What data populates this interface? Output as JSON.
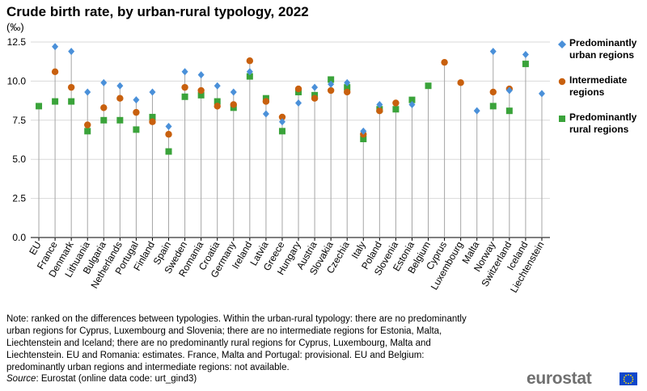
{
  "chart_data": {
    "type": "scatter",
    "title": "Crude birth rate, by urban-rural typology, 2022",
    "ylabel": "(‰)",
    "ylim": [
      0,
      12.5
    ],
    "yticks": [
      "0.0",
      "2.5",
      "5.0",
      "7.5",
      "10.0",
      "12.5"
    ],
    "grid": true,
    "legend_position": "right",
    "categories": [
      "EU",
      "France",
      "Denmark",
      "Lithuania",
      "Bulgaria",
      "Netherlands",
      "Portugal",
      "Finland",
      "Spain",
      "Sweden",
      "Romania",
      "Croatia",
      "Germany",
      "Ireland",
      "Latvia",
      "Greece",
      "Hungary",
      "Austria",
      "Slovakia",
      "Czechia",
      "Italy",
      "Poland",
      "Slovenia",
      "Estonia",
      "Belgium",
      "Cyprus",
      "Luxembourg",
      "Malta",
      "Norway",
      "Switzerland",
      "Iceland",
      "Liechtenstein"
    ],
    "series": [
      {
        "name": "Predominantly urban regions",
        "color": "#4a90d9",
        "marker": "diamond",
        "values": [
          null,
          12.2,
          11.9,
          9.3,
          9.9,
          9.7,
          8.8,
          9.3,
          7.1,
          10.6,
          10.4,
          9.7,
          9.3,
          10.6,
          7.9,
          7.4,
          8.6,
          9.6,
          9.8,
          9.9,
          6.8,
          8.5,
          null,
          8.5,
          null,
          null,
          null,
          8.1,
          11.9,
          9.4,
          11.7,
          9.2
        ]
      },
      {
        "name": "Intermediate regions",
        "color": "#c8600e",
        "marker": "circle",
        "values": [
          null,
          10.6,
          9.6,
          7.2,
          8.3,
          8.9,
          8.0,
          7.4,
          6.6,
          9.6,
          9.4,
          8.4,
          8.5,
          11.3,
          8.7,
          7.7,
          9.5,
          8.9,
          9.4,
          9.3,
          6.6,
          8.1,
          8.6,
          null,
          null,
          11.2,
          9.9,
          null,
          9.3,
          9.5,
          null,
          null
        ]
      },
      {
        "name": "Predominantly rural regions",
        "color": "#3aa33a",
        "marker": "square",
        "values": [
          8.4,
          8.7,
          8.7,
          6.8,
          7.5,
          7.5,
          6.9,
          7.7,
          5.5,
          9.0,
          9.1,
          8.7,
          8.3,
          10.3,
          8.9,
          6.8,
          9.3,
          9.1,
          10.1,
          9.6,
          6.3,
          8.2,
          8.2,
          8.8,
          9.7,
          null,
          null,
          null,
          8.4,
          8.1,
          11.1,
          null
        ]
      }
    ]
  },
  "note": "Note: ranked on the differences between typologies. Within the urban-rural typology: there are no predominantly urban regions for Cyprus, Luxembourg and Slovenia; there are no intermediate regions for Estonia, Malta, Liechtenstein and Iceland; there are no predominantly rural regions for Cyprus, Luxembourg, Malta and Liechtenstein. EU and Romania: estimates. France, Malta and Portugal: provisional. EU and Belgium: predominantly urban regions and intermediate regions: not available.",
  "source_label": "Source",
  "source_text": ": Eurostat (online data code: urt_gind3)",
  "logo_text": "eurostat"
}
